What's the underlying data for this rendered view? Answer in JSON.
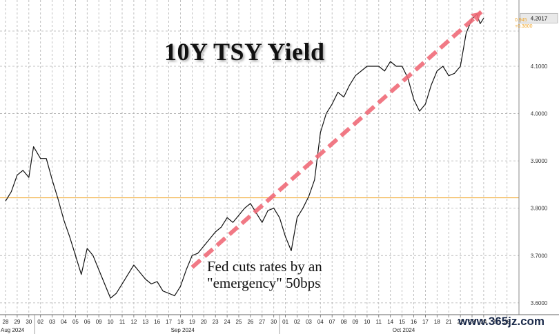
{
  "chart_data": {
    "type": "line",
    "title": "10Y TSY Yield",
    "annotation": "Fed cuts rates by an\n\"emergency\" 50bps",
    "watermark": "www.365jz.com",
    "ylim": [
      3.575,
      4.24
    ],
    "yticks": [
      "3.6000",
      "3.7000",
      "3.8000",
      "3.9000",
      "4.0000",
      "4.1000"
    ],
    "last_value_label": "4.2017",
    "last_change_labels": [
      "0.945",
      "+0.3800"
    ],
    "reference_level": 3.822,
    "grid": true,
    "x_day_labels": [
      "28",
      "29",
      "30",
      "02",
      "03",
      "04",
      "05",
      "06",
      "09",
      "10",
      "11",
      "12",
      "13",
      "16",
      "17",
      "18",
      "19",
      "20",
      "23",
      "24",
      "25",
      "26",
      "27",
      "30",
      "01",
      "02",
      "03",
      "04",
      "07",
      "08",
      "09",
      "10",
      "11",
      "14",
      "15",
      "16",
      "17",
      "18",
      "21",
      "22",
      "23",
      "24",
      "25",
      "28"
    ],
    "x_month_labels": [
      {
        "label": "Aug 2024",
        "day_index": 0
      },
      {
        "label": "Sep 2024",
        "day_index": 14
      },
      {
        "label": "Oct 2024",
        "day_index": 33
      }
    ],
    "series": [
      {
        "values": [
          [
            0,
            3.815
          ],
          [
            0.5,
            3.835
          ],
          [
            1,
            3.87
          ],
          [
            1.5,
            3.88
          ],
          [
            2,
            3.865
          ],
          [
            2.4,
            3.93
          ],
          [
            3,
            3.905
          ],
          [
            3.5,
            3.905
          ],
          [
            4,
            3.86
          ],
          [
            4.5,
            3.82
          ],
          [
            5,
            3.775
          ],
          [
            5.5,
            3.74
          ],
          [
            6,
            3.7
          ],
          [
            6.5,
            3.66
          ],
          [
            7,
            3.715
          ],
          [
            7.5,
            3.7
          ],
          [
            8,
            3.67
          ],
          [
            8.5,
            3.64
          ],
          [
            9,
            3.61
          ],
          [
            9.5,
            3.62
          ],
          [
            10,
            3.64
          ],
          [
            10.5,
            3.66
          ],
          [
            11,
            3.68
          ],
          [
            11.5,
            3.665
          ],
          [
            12,
            3.65
          ],
          [
            12.5,
            3.64
          ],
          [
            13,
            3.645
          ],
          [
            13.5,
            3.625
          ],
          [
            14,
            3.62
          ],
          [
            14.5,
            3.615
          ],
          [
            15,
            3.635
          ],
          [
            15.5,
            3.67
          ],
          [
            16,
            3.7
          ],
          [
            16.5,
            3.705
          ],
          [
            17,
            3.72
          ],
          [
            17.5,
            3.735
          ],
          [
            18,
            3.75
          ],
          [
            18.5,
            3.76
          ],
          [
            19,
            3.78
          ],
          [
            19.5,
            3.77
          ],
          [
            20,
            3.785
          ],
          [
            20.5,
            3.8
          ],
          [
            21,
            3.81
          ],
          [
            21.5,
            3.79
          ],
          [
            22,
            3.77
          ],
          [
            22.5,
            3.795
          ],
          [
            23,
            3.8
          ],
          [
            23.5,
            3.78
          ],
          [
            24,
            3.74
          ],
          [
            24.5,
            3.71
          ],
          [
            25,
            3.78
          ],
          [
            25.5,
            3.8
          ],
          [
            26,
            3.825
          ],
          [
            26.5,
            3.86
          ],
          [
            27,
            3.96
          ],
          [
            27.5,
            4.0
          ],
          [
            28,
            4.02
          ],
          [
            28.5,
            4.045
          ],
          [
            29,
            4.035
          ],
          [
            29.5,
            4.06
          ],
          [
            30,
            4.08
          ],
          [
            30.5,
            4.09
          ],
          [
            31,
            4.1
          ],
          [
            31.5,
            4.1
          ],
          [
            32,
            4.1
          ],
          [
            32.5,
            4.09
          ],
          [
            33,
            4.11
          ],
          [
            33.5,
            4.1
          ],
          [
            34,
            4.1
          ],
          [
            34.5,
            4.075
          ],
          [
            35,
            4.03
          ],
          [
            35.5,
            4.005
          ],
          [
            36,
            4.02
          ],
          [
            36.5,
            4.06
          ],
          [
            37,
            4.09
          ],
          [
            37.5,
            4.1
          ],
          [
            38,
            4.08
          ],
          [
            38.5,
            4.085
          ],
          [
            39,
            4.1
          ],
          [
            39.5,
            4.17
          ],
          [
            40,
            4.2
          ],
          [
            40.4,
            4.21
          ],
          [
            40.7,
            4.19
          ],
          [
            41,
            4.2017
          ]
        ]
      }
    ],
    "trend_line": {
      "from": [
        16,
        3.675
      ],
      "to": [
        40.8,
        4.215
      ]
    },
    "colors": {
      "series": "#111111",
      "trend": "#f06b78",
      "reference": "#f0a830",
      "grid": "#b0b0b0",
      "last_change": "#f0a830",
      "last_value_bg": "#e9e9e9"
    }
  }
}
